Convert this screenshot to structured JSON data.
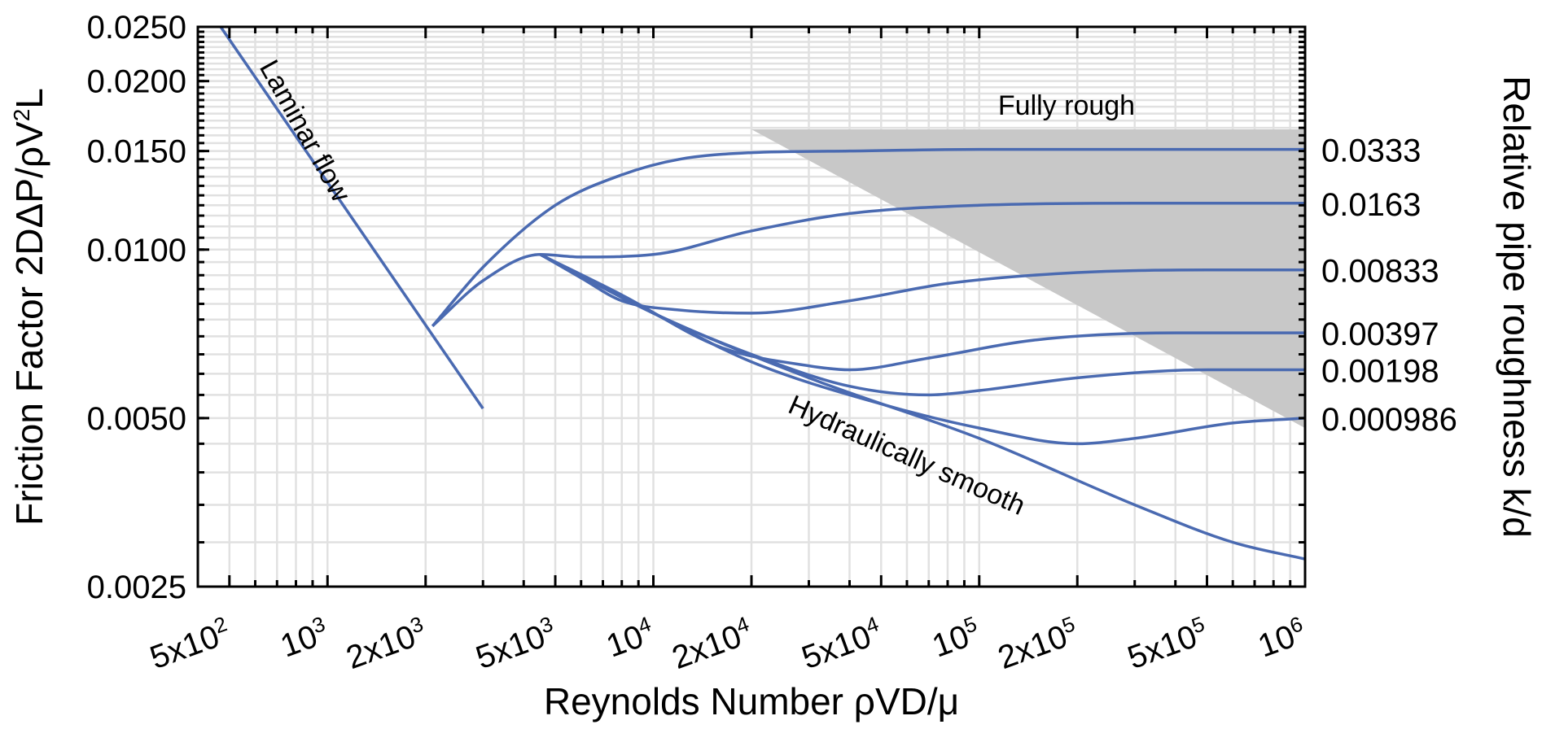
{
  "chart_data": {
    "type": "line",
    "xlabel": "Reynolds Number  ρVD/μ",
    "ylabel": "Friction Factor  2DΔP/ρV²L",
    "y2label": "Relative pipe roughness  k/d",
    "xscale": "log",
    "yscale": "log",
    "xlim": [
      400,
      1000000
    ],
    "ylim": [
      0.0025,
      0.025
    ],
    "grid": true,
    "line_color": "#4a6ab1",
    "shade_color": "#c8c8c8",
    "grid_color": "#e1e1e1",
    "x_ticks": [
      {
        "x": 500,
        "base": "5x10",
        "exp": "2"
      },
      {
        "x": 1000,
        "base": "10",
        "exp": "3"
      },
      {
        "x": 2000,
        "base": "2x10",
        "exp": "3"
      },
      {
        "x": 5000,
        "base": "5x10",
        "exp": "3"
      },
      {
        "x": 10000,
        "base": "10",
        "exp": "4"
      },
      {
        "x": 20000,
        "base": "2x10",
        "exp": "4"
      },
      {
        "x": 50000,
        "base": "5x10",
        "exp": "4"
      },
      {
        "x": 100000,
        "base": "10",
        "exp": "5"
      },
      {
        "x": 200000,
        "base": "2x10",
        "exp": "5"
      },
      {
        "x": 500000,
        "base": "5x10",
        "exp": "5"
      },
      {
        "x": 1000000,
        "base": "10",
        "exp": "6"
      }
    ],
    "y_ticks": [
      {
        "y": 0.025,
        "label": "0.0250"
      },
      {
        "y": 0.02,
        "label": "0.0200"
      },
      {
        "y": 0.015,
        "label": "0.0150"
      },
      {
        "y": 0.01,
        "label": "0.0100"
      },
      {
        "y": 0.005,
        "label": "0.0050"
      },
      {
        "y": 0.0025,
        "label": "0.0025"
      }
    ],
    "annotations": {
      "laminar": "Laminar flow",
      "smooth": "Hydraulically smooth",
      "rough": "Fully rough"
    },
    "laminar_line": {
      "x": [
        470,
        3000
      ],
      "y": [
        0.025,
        0.0052
      ]
    },
    "fully_rough_region": {
      "x": [
        20000,
        150000,
        1000000,
        1000000
      ],
      "y": [
        0.0164,
        0.0164,
        0.0164,
        0.0048
      ]
    },
    "series": [
      {
        "name": "0.0333",
        "x": [
          2100,
          3000,
          5000,
          8000,
          12000,
          20000,
          40000,
          100000,
          300000,
          1000000
        ],
        "y": [
          0.0073,
          0.0093,
          0.012,
          0.0136,
          0.0145,
          0.0149,
          0.015,
          0.0151,
          0.0151,
          0.0151
        ]
      },
      {
        "name": "0.0163",
        "x": [
          2100,
          3000,
          4500,
          6000,
          10000,
          20000,
          40000,
          100000,
          300000,
          1000000
        ],
        "y": [
          0.0073,
          0.0088,
          0.0098,
          0.0097,
          0.0098,
          0.0108,
          0.0116,
          0.012,
          0.0121,
          0.0121
        ]
      },
      {
        "name": "0.00833",
        "x": [
          4500,
          6000,
          8000,
          12000,
          20000,
          40000,
          80000,
          200000,
          500000,
          1000000
        ],
        "y": [
          0.0098,
          0.0089,
          0.0081,
          0.0078,
          0.0077,
          0.0081,
          0.0087,
          0.0091,
          0.0092,
          0.0092
        ]
      },
      {
        "name": "0.00397",
        "x": [
          4500,
          8000,
          16000,
          30000,
          40000,
          70000,
          150000,
          400000,
          1000000
        ],
        "y": [
          0.0098,
          0.0083,
          0.0067,
          0.0062,
          0.0061,
          0.0064,
          0.0069,
          0.0071,
          0.0071
        ]
      },
      {
        "name": "0.00198",
        "x": [
          4500,
          10000,
          20000,
          40000,
          70000,
          100000,
          200000,
          500000,
          1000000
        ],
        "y": [
          0.0098,
          0.0077,
          0.0065,
          0.0057,
          0.0055,
          0.0056,
          0.0059,
          0.0061,
          0.0061
        ]
      },
      {
        "name": "0.000986",
        "x": [
          4500,
          10000,
          20000,
          50000,
          100000,
          200000,
          300000,
          600000,
          1000000
        ],
        "y": [
          0.0098,
          0.0077,
          0.0063,
          0.0053,
          0.0048,
          0.0045,
          0.0046,
          0.0049,
          0.005
        ]
      },
      {
        "name": "",
        "x": [
          4500,
          10000,
          30000,
          100000,
          300000,
          600000,
          1000000
        ],
        "y": [
          0.0098,
          0.0077,
          0.0059,
          0.0046,
          0.0035,
          0.003,
          0.0028
        ]
      }
    ]
  }
}
